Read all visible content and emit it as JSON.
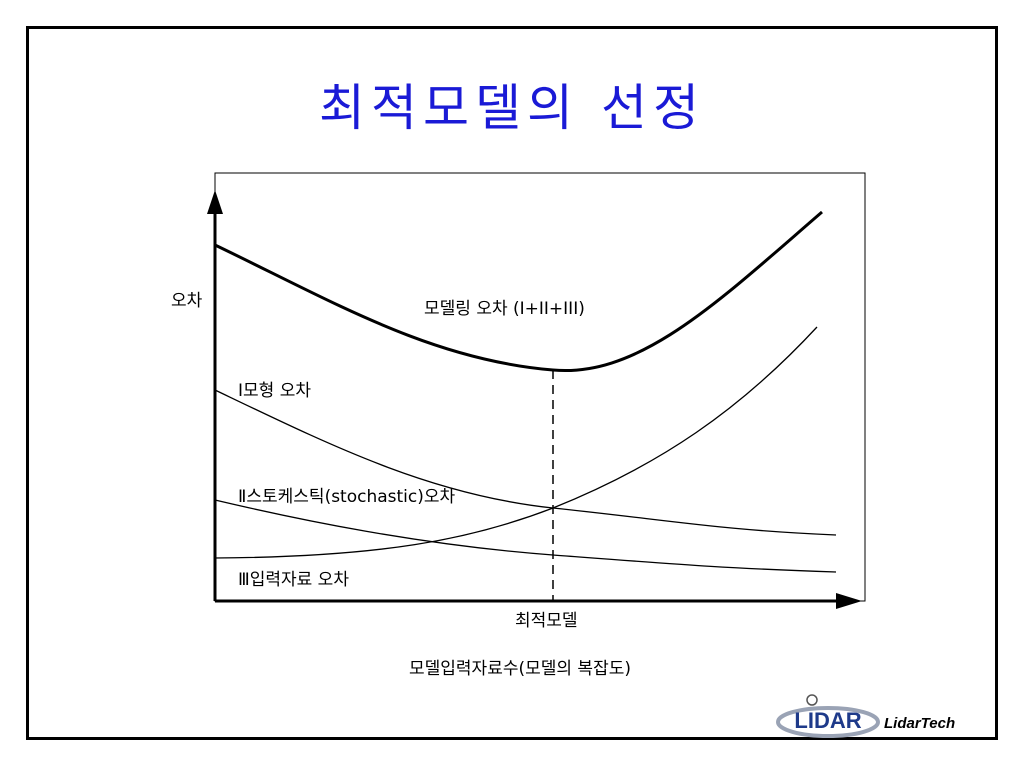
{
  "title": "최적모델의 선정",
  "title_color": "#1a1ad6",
  "y_axis_label": "오차",
  "x_axis_label": "모델입력자료수(모델의 복잡도)",
  "optimum_label": "최적모델",
  "curves": {
    "total": "모델링 오차 (I+II+III)",
    "model": "Ⅰ모형 오차",
    "stochastic": "Ⅱ스토케스틱(stochastic)오차",
    "input": "Ⅲ입력자료 오차"
  },
  "logo": {
    "mark": "LIDAR",
    "name": "LidarTech",
    "color": "#1e3a8a"
  }
}
